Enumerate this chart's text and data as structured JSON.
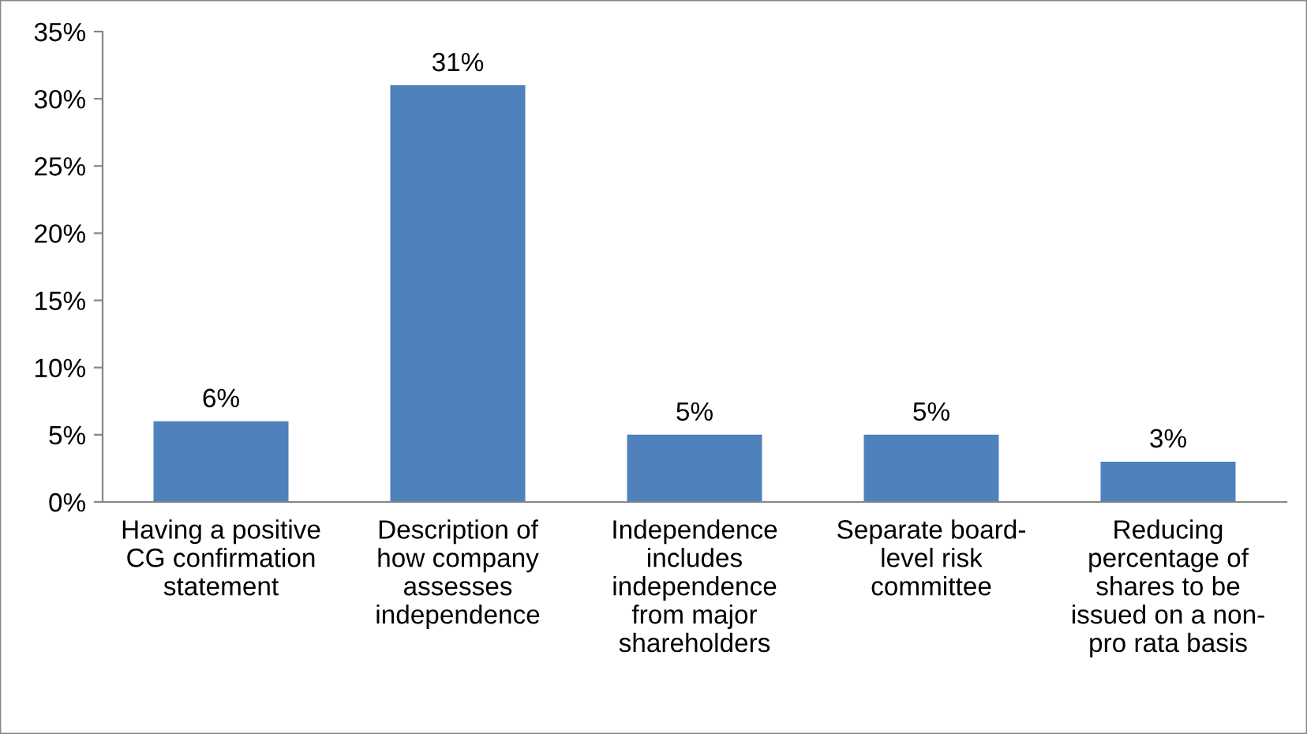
{
  "chart_data": {
    "type": "bar",
    "categories": [
      "Having a positive\nCG confirmation\nstatement",
      "Description of\nhow company\nassesses\nindependence",
      "Independence\nincludes\nindependence\nfrom major\nshareholders",
      "Separate board-\nlevel risk\ncommittee",
      "Reducing\npercentage of\nshares to be\nissued on a non-\npro rata basis"
    ],
    "values": [
      6,
      31,
      5,
      5,
      3
    ],
    "color": "#4f81bd",
    "value_labels": [
      "6%",
      "31%",
      "5%",
      "5%",
      "3%"
    ],
    "ylim": [
      0,
      35
    ],
    "yticks": [
      {
        "value": 0,
        "label": "0%"
      },
      {
        "value": 5,
        "label": "5%"
      },
      {
        "value": 10,
        "label": "10%"
      },
      {
        "value": 15,
        "label": "15%"
      },
      {
        "value": 20,
        "label": "20%"
      },
      {
        "value": 25,
        "label": "25%"
      },
      {
        "value": 30,
        "label": "30%"
      },
      {
        "value": 35,
        "label": "35%"
      }
    ],
    "grid": false,
    "legend": false
  }
}
